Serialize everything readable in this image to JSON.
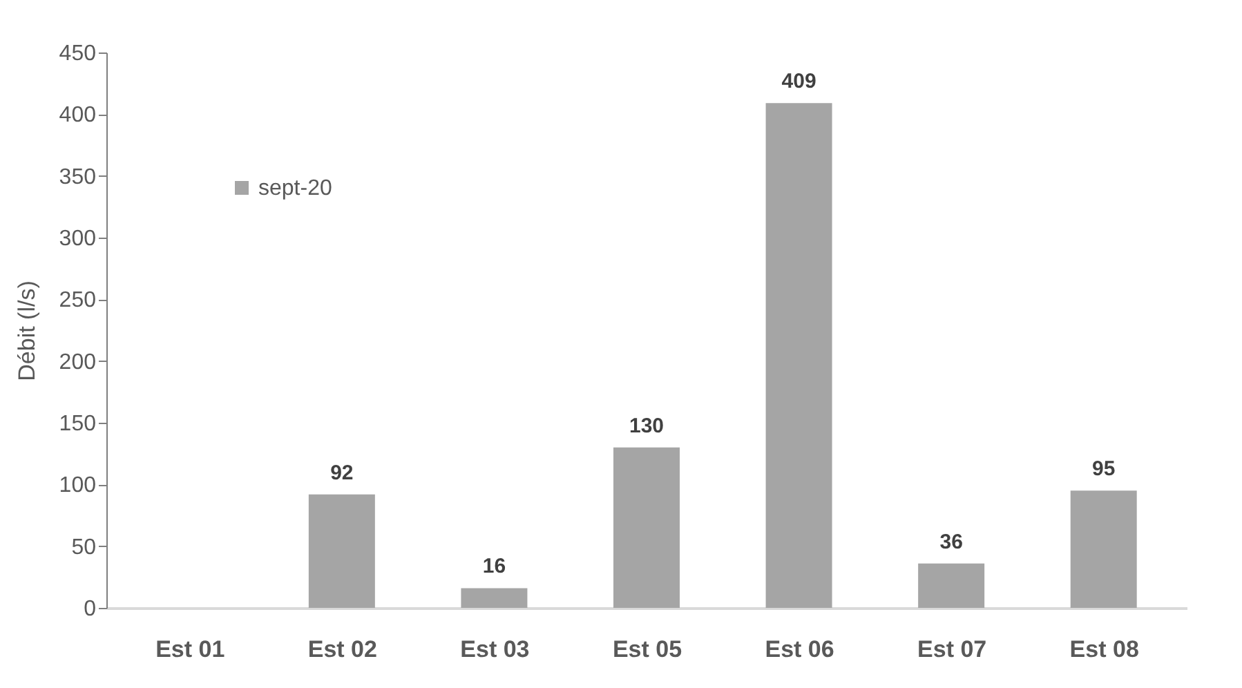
{
  "chart_data": {
    "type": "bar",
    "ylabel": "Débit (l/s)",
    "categories": [
      "Est 01",
      "Est 02",
      "Est 03",
      "Est 05",
      "Est 06",
      "Est 07",
      "Est 08"
    ],
    "series": [
      {
        "name": "sept-20",
        "color": "#a5a5a5",
        "values": [
          null,
          92,
          16,
          130,
          409,
          36,
          95
        ]
      }
    ],
    "ylim": [
      0,
      450
    ],
    "yticks": [
      0,
      50,
      100,
      150,
      200,
      250,
      300,
      350,
      400,
      450
    ],
    "data_labels": true,
    "grid": false,
    "legend": "top left"
  }
}
